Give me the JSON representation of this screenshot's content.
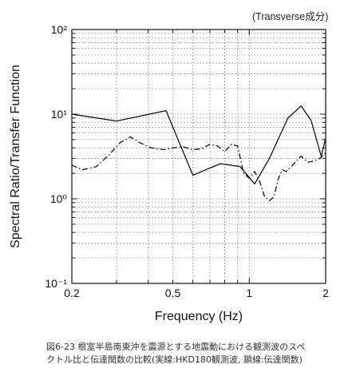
{
  "annotation": "(Transverse成分)",
  "caption": {
    "line1": "図6-23 根室半島南東沖を震源とする地震動における観測波のスペ",
    "line2": "クトル比と伝達関数の比較(実線:HKD180観測波, 鎖線:伝達関数)"
  },
  "chart_data": {
    "type": "line",
    "xlabel": "Frequency (Hz)",
    "ylabel": "Spectral Ratio/Transfer Function",
    "xscale": "log",
    "yscale": "log",
    "xlim": [
      0.2,
      2
    ],
    "ylim": [
      0.1,
      100
    ],
    "grid": true,
    "x_tick_labels": [
      "0.2",
      "0.5",
      "1",
      "2"
    ],
    "y_tick_labels": [
      "10⁻¹",
      "10⁰",
      "10¹",
      "10²"
    ],
    "series": [
      {
        "style": "solid",
        "x": [
          0.2,
          0.3,
          0.47,
          0.6,
          0.77,
          0.92,
          1.05,
          1.2,
          1.42,
          1.6,
          1.75,
          1.92,
          2.0
        ],
        "y": [
          10.0,
          8.3,
          11.0,
          1.9,
          2.6,
          2.4,
          1.5,
          3.0,
          9.0,
          12.5,
          8.5,
          3.2,
          5.2
        ]
      },
      {
        "style": "dashdot",
        "x": [
          0.2,
          0.22,
          0.25,
          0.28,
          0.31,
          0.34,
          0.37,
          0.41,
          0.46,
          0.5,
          0.55,
          0.6,
          0.65,
          0.7,
          0.75,
          0.8,
          0.85,
          0.9,
          0.95,
          1.0,
          1.05,
          1.1,
          1.15,
          1.2,
          1.25,
          1.3,
          1.35,
          1.4,
          1.5,
          1.6,
          1.7,
          1.8,
          1.9,
          2.0
        ],
        "y": [
          2.5,
          2.2,
          2.4,
          3.3,
          4.6,
          5.4,
          4.6,
          4.0,
          3.8,
          4.0,
          4.1,
          3.8,
          3.9,
          4.4,
          4.2,
          3.6,
          4.4,
          4.2,
          2.0,
          1.75,
          2.1,
          1.6,
          1.05,
          0.95,
          1.05,
          1.7,
          2.2,
          2.1,
          2.6,
          3.2,
          2.7,
          2.8,
          3.0,
          3.5
        ]
      }
    ]
  }
}
